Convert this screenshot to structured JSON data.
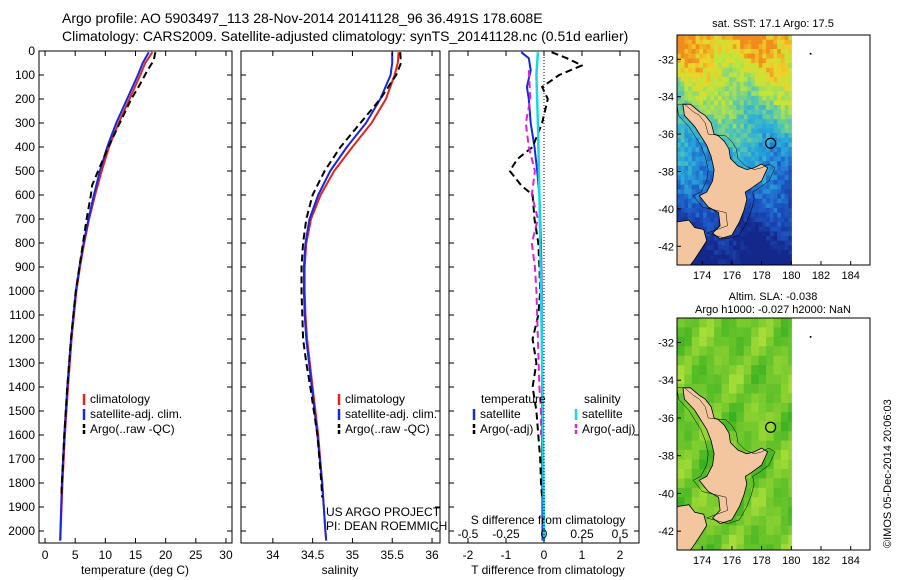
{
  "titles": {
    "line1": "Argo profile: AO 5903497_113 28-Nov-2014 20141128_96 36.491S 178.608E",
    "line2": "Climatology: CARS2009. Satellite-adjusted climatology: synTS_20141128.nc (0.51d earlier)"
  },
  "credits": {
    "project": "US ARGO PROJECT",
    "pi": "PI: DEAN ROEMMICH",
    "imos": "©IMOS 05-Dec-2014 20:06:03"
  },
  "colors": {
    "climatology": "#e8231b",
    "satellite": "#1628e0",
    "argo": "#000000",
    "satellite_s": "#18d8e8",
    "argo_s": "#e020d8",
    "land": "#f4c6a0"
  },
  "chart_data": [
    {
      "type": "line",
      "id": "temperature",
      "xlabel": "temperature (deg C)",
      "ylabel": "",
      "xlim": [
        -1,
        31
      ],
      "ylim": [
        2050,
        0
      ],
      "xticks": [
        0,
        5,
        10,
        15,
        20,
        25,
        30
      ],
      "yticks": [
        0,
        100,
        200,
        300,
        400,
        500,
        600,
        700,
        800,
        900,
        1000,
        1100,
        1200,
        1300,
        1400,
        1500,
        1600,
        1700,
        1800,
        1900,
        2000
      ],
      "legend": [
        "climatology",
        "satellite-adj. clim.",
        "Argo(..raw -QC)"
      ],
      "series": [
        {
          "name": "climatology",
          "style": "climatology",
          "depth": [
            5,
            50,
            100,
            200,
            300,
            400,
            500,
            600,
            700,
            800,
            900,
            1000,
            1200,
            1400,
            1600,
            1800,
            2000,
            2040
          ],
          "values": [
            17.8,
            16.6,
            15.8,
            14.0,
            12.2,
            10.6,
            9.4,
            8.3,
            7.3,
            6.5,
            5.8,
            5.2,
            4.4,
            3.8,
            3.3,
            2.9,
            2.6,
            2.55
          ]
        },
        {
          "name": "satellite-adj. clim.",
          "style": "satellite",
          "depth": [
            5,
            50,
            100,
            200,
            300,
            400,
            500,
            600,
            700,
            800,
            900,
            1000,
            1200,
            1400,
            1600,
            1800,
            2000,
            2040
          ],
          "values": [
            17.2,
            16.2,
            15.4,
            13.6,
            11.8,
            10.3,
            9.1,
            8.1,
            7.2,
            6.4,
            5.7,
            5.1,
            4.3,
            3.7,
            3.2,
            2.8,
            2.55,
            2.5
          ]
        },
        {
          "name": "Argo(..raw -QC)",
          "style": "argo",
          "depth": [
            5,
            40,
            80,
            150,
            200,
            300,
            400,
            500,
            560,
            600,
            700,
            800,
            900,
            1000,
            1200,
            1400,
            1600,
            1800,
            1860
          ],
          "values": [
            18.3,
            18.0,
            17.0,
            15.5,
            14.3,
            12.4,
            10.5,
            8.8,
            7.8,
            7.6,
            6.9,
            6.3,
            5.7,
            5.1,
            4.3,
            3.7,
            3.2,
            2.8,
            2.7
          ]
        }
      ]
    },
    {
      "type": "line",
      "id": "salinity",
      "xlabel": "salinity",
      "ylabel": "",
      "xlim": [
        33.6,
        36.1
      ],
      "ylim": [
        2050,
        0
      ],
      "xticks": [
        34,
        34.5,
        35,
        35.5,
        36
      ],
      "xtick_labels": [
        "34",
        "34.5",
        "35",
        "35.5",
        "36"
      ],
      "legend": [
        "climatology",
        "satellite-adj. clim.",
        "Argo(..raw -QC)"
      ],
      "series": [
        {
          "name": "climatology",
          "style": "climatology",
          "depth": [
            5,
            50,
            100,
            200,
            300,
            400,
            500,
            600,
            700,
            800,
            900,
            1000,
            1100,
            1200,
            1400,
            1600,
            1800,
            2000,
            2040
          ],
          "values": [
            35.58,
            35.57,
            35.53,
            35.42,
            35.24,
            35.0,
            34.77,
            34.6,
            34.48,
            34.42,
            34.4,
            34.4,
            34.41,
            34.43,
            34.5,
            34.57,
            34.62,
            34.66,
            34.67
          ]
        },
        {
          "name": "satellite-adj. clim.",
          "style": "satellite",
          "depth": [
            5,
            50,
            100,
            200,
            300,
            400,
            500,
            600,
            700,
            800,
            900,
            1000,
            1100,
            1200,
            1400,
            1600,
            1800,
            2000,
            2040
          ],
          "values": [
            35.5,
            35.5,
            35.48,
            35.35,
            35.17,
            34.93,
            34.72,
            34.57,
            34.46,
            34.41,
            34.39,
            34.39,
            34.4,
            34.42,
            34.49,
            34.56,
            34.62,
            34.66,
            34.67
          ]
        },
        {
          "name": "Argo(..raw -QC)",
          "style": "argo",
          "depth": [
            5,
            50,
            100,
            200,
            300,
            400,
            500,
            600,
            700,
            800,
            900,
            1000,
            1100,
            1200,
            1300,
            1400,
            1600,
            1800,
            1860
          ],
          "values": [
            35.6,
            35.61,
            35.55,
            35.35,
            35.1,
            34.85,
            34.65,
            34.5,
            34.42,
            34.38,
            34.36,
            34.36,
            34.37,
            34.38,
            34.42,
            34.47,
            34.56,
            34.61,
            34.62
          ]
        }
      ]
    },
    {
      "type": "line",
      "id": "difference",
      "xlabel": "T difference from climatology",
      "x2label": "S difference from climatology",
      "ylabel": "",
      "xlim": [
        -2.5,
        2.5
      ],
      "ylim": [
        2050,
        0
      ],
      "xticks": [
        -2,
        -1,
        0,
        1,
        2
      ],
      "x2ticks": [
        -0.5,
        -0.25,
        0,
        0.25,
        0.5
      ],
      "x2tick_labels": [
        "-0.5",
        "-0.25",
        "0",
        "0.25",
        "0.5"
      ],
      "legend_groups": [
        {
          "title": "temperature",
          "items": [
            "satellite",
            "Argo(-adj)"
          ]
        },
        {
          "title": "salinity",
          "items": [
            "satellite",
            "Argo(-adj)"
          ]
        }
      ],
      "series": [
        {
          "name": "temperature satellite",
          "style": "satellite",
          "axis": "T",
          "depth": [
            5,
            30,
            80,
            150,
            200,
            300,
            400,
            500,
            600,
            800,
            1000,
            1400,
            2040
          ],
          "values": [
            -0.6,
            -0.4,
            -0.35,
            -0.45,
            -0.4,
            -0.35,
            -0.25,
            -0.18,
            -0.12,
            -0.08,
            -0.06,
            -0.05,
            -0.04
          ]
        },
        {
          "name": "temperature Argo(-adj)",
          "style": "argo",
          "axis": "T",
          "depth": [
            5,
            30,
            60,
            100,
            150,
            200,
            300,
            400,
            450,
            500,
            560,
            600,
            700,
            800,
            900,
            1000,
            1100,
            1200,
            1300,
            1400,
            1500,
            1600,
            1700,
            1800,
            1860
          ],
          "values": [
            0.2,
            0.6,
            1.0,
            0.4,
            -0.05,
            0.1,
            -0.05,
            -0.3,
            -0.7,
            -0.9,
            -0.6,
            -0.3,
            -0.25,
            -0.15,
            -0.12,
            -0.1,
            -0.15,
            -0.3,
            -0.2,
            -0.3,
            -0.2,
            -0.15,
            -0.1,
            -0.08,
            -0.05
          ]
        },
        {
          "name": "salinity satellite",
          "style": "satellite_s",
          "axis": "S",
          "depth": [
            5,
            100,
            300,
            600,
            1000,
            1400,
            2000,
            2040
          ],
          "values": [
            -0.04,
            -0.05,
            -0.04,
            -0.03,
            -0.02,
            -0.01,
            0.0,
            0.0
          ]
        },
        {
          "name": "salinity Argo(-adj)",
          "style": "argo_s",
          "axis": "S",
          "depth": [
            80,
            200,
            300,
            400,
            500,
            600,
            700,
            800,
            900,
            1000,
            1200,
            1400,
            1500,
            1600
          ],
          "values": [
            -0.1,
            -0.09,
            -0.12,
            -0.1,
            -0.06,
            -0.08,
            -0.04,
            -0.08,
            -0.06,
            -0.05,
            -0.04,
            -0.03,
            -0.02,
            -0.02
          ]
        }
      ]
    },
    {
      "type": "heatmap",
      "id": "sst-map",
      "title": "sat. SST: 17.1  Argo: 17.5",
      "xticks": [
        174,
        176,
        178,
        180,
        182,
        184
      ],
      "yticks": [
        -32,
        -34,
        -36,
        -38,
        -40,
        -42
      ],
      "xlim": [
        172.3,
        185.3
      ],
      "ylim": [
        -43,
        -30.7
      ],
      "data_extent_lon": [
        172.3,
        180
      ],
      "argo_position": [
        178.608,
        -36.491
      ]
    },
    {
      "type": "heatmap",
      "id": "sla-map",
      "title": "Altim. SLA: -0.038",
      "subtitle": "Argo h1000: -0.027 h2000: NaN",
      "xticks": [
        174,
        176,
        178,
        180,
        182,
        184
      ],
      "yticks": [
        -32,
        -34,
        -36,
        -38,
        -40,
        -42
      ],
      "xlim": [
        172.3,
        185.3
      ],
      "ylim": [
        -43,
        -30.7
      ],
      "data_extent_lon": [
        172.3,
        180
      ],
      "argo_position": [
        178.608,
        -36.491
      ]
    }
  ]
}
